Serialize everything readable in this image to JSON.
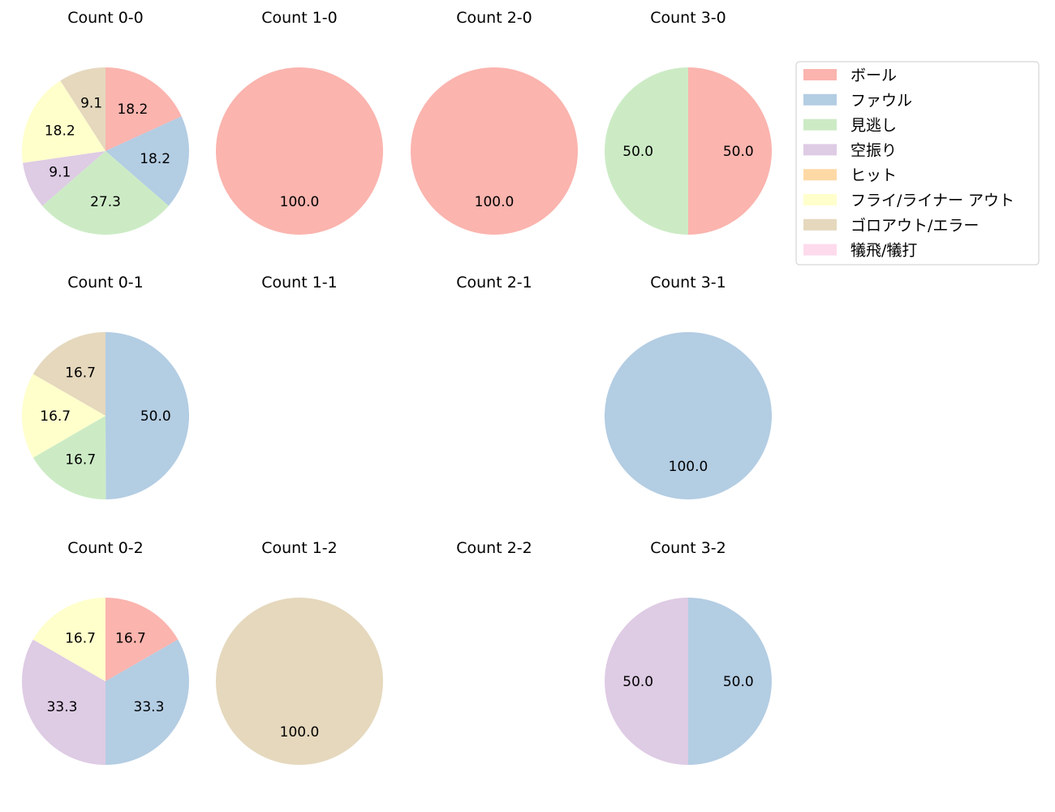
{
  "legend": {
    "placement": "top-right",
    "entries": [
      {
        "label": "ボール",
        "color": "#fbb4ae"
      },
      {
        "label": "ファウル",
        "color": "#b3cde3"
      },
      {
        "label": "見逃し",
        "color": "#ccebc5"
      },
      {
        "label": "空振り",
        "color": "#decbe4"
      },
      {
        "label": "ヒット",
        "color": "#fed9a6"
      },
      {
        "label": "フライ/ライナー アウト",
        "color": "#ffffcc"
      },
      {
        "label": "ゴロアウト/エラー",
        "color": "#e5d8bd"
      },
      {
        "label": "犠飛/犠打",
        "color": "#fddaec"
      }
    ]
  },
  "chart_data": [
    {
      "type": "pie",
      "title": "Count 0-0",
      "slices": [
        {
          "category": "ボール",
          "value": 18.2
        },
        {
          "category": "ファウル",
          "value": 18.2
        },
        {
          "category": "見逃し",
          "value": 27.3
        },
        {
          "category": "空振り",
          "value": 9.1
        },
        {
          "category": "フライ/ライナー アウト",
          "value": 18.2
        },
        {
          "category": "ゴロアウト/エラー",
          "value": 9.1
        }
      ]
    },
    {
      "type": "pie",
      "title": "Count 1-0",
      "slices": [
        {
          "category": "ボール",
          "value": 100.0
        }
      ]
    },
    {
      "type": "pie",
      "title": "Count 2-0",
      "slices": [
        {
          "category": "ボール",
          "value": 100.0
        }
      ]
    },
    {
      "type": "pie",
      "title": "Count 3-0",
      "slices": [
        {
          "category": "ボール",
          "value": 50.0
        },
        {
          "category": "見逃し",
          "value": 50.0
        }
      ]
    },
    {
      "type": "pie",
      "title": "Count 0-1",
      "slices": [
        {
          "category": "ファウル",
          "value": 50.0
        },
        {
          "category": "見逃し",
          "value": 16.7
        },
        {
          "category": "フライ/ライナー アウト",
          "value": 16.7
        },
        {
          "category": "ゴロアウト/エラー",
          "value": 16.7
        }
      ]
    },
    {
      "type": "pie",
      "title": "Count 1-1",
      "slices": []
    },
    {
      "type": "pie",
      "title": "Count 2-1",
      "slices": []
    },
    {
      "type": "pie",
      "title": "Count 3-1",
      "slices": [
        {
          "category": "ファウル",
          "value": 100.0
        }
      ]
    },
    {
      "type": "pie",
      "title": "Count 0-2",
      "slices": [
        {
          "category": "ボール",
          "value": 16.7
        },
        {
          "category": "ファウル",
          "value": 33.3
        },
        {
          "category": "空振り",
          "value": 33.3
        },
        {
          "category": "フライ/ライナー アウト",
          "value": 16.7
        }
      ]
    },
    {
      "type": "pie",
      "title": "Count 1-2",
      "slices": [
        {
          "category": "ゴロアウト/エラー",
          "value": 100.0
        }
      ]
    },
    {
      "type": "pie",
      "title": "Count 2-2",
      "slices": []
    },
    {
      "type": "pie",
      "title": "Count 3-2",
      "slices": [
        {
          "category": "ファウル",
          "value": 50.0
        },
        {
          "category": "空振り",
          "value": 50.0
        }
      ]
    }
  ]
}
